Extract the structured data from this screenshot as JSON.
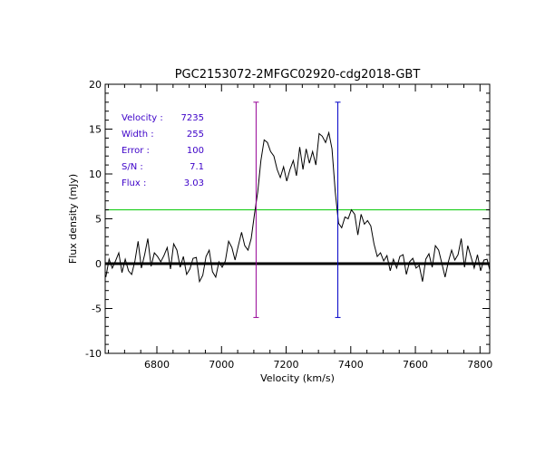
{
  "chart_data": {
    "type": "line",
    "title": "PGC2153072-2MFGC02920-cdg2018-GBT",
    "xlabel": "Velocity (km/s)",
    "ylabel": "Flux density (mJy)",
    "xlim": [
      6640,
      7830
    ],
    "ylim": [
      -10,
      20
    ],
    "x_ticks": [
      6800,
      7000,
      7200,
      7400,
      7600,
      7800
    ],
    "y_ticks": [
      -10,
      -5,
      0,
      5,
      10,
      15,
      20
    ],
    "x_tick_labels": [
      "6800",
      "7000",
      "7200",
      "7400",
      "7600",
      "7800"
    ],
    "y_tick_labels": [
      "-10",
      "-5",
      "0",
      "5",
      "10",
      "15",
      "20"
    ],
    "grid": false,
    "info_color": "#3c00c8",
    "info": [
      {
        "label": "Velocity :",
        "value": "7235"
      },
      {
        "label": "Width :",
        "value": "255"
      },
      {
        "label": "Error :",
        "value": "100"
      },
      {
        "label": "S/N :",
        "value": "7.1"
      },
      {
        "label": "Flux :",
        "value": "3.03"
      }
    ],
    "threshold_line": {
      "y": 6.0,
      "color": "#00c800"
    },
    "zero_line": {
      "y": 0,
      "color": "#000000"
    },
    "markers": [
      {
        "x": 7107,
        "ymin": -6,
        "ymax": 18,
        "color": "#960096"
      },
      {
        "x": 7360,
        "ymin": -6,
        "ymax": 18,
        "color": "#0000c8"
      }
    ],
    "series": [
      {
        "color": "#000000",
        "x": [
          6642,
          6652,
          6662,
          6672,
          6682,
          6692,
          6702,
          6712,
          6722,
          6732,
          6742,
          6752,
          6762,
          6772,
          6782,
          6792,
          6802,
          6812,
          6822,
          6832,
          6842,
          6852,
          6862,
          6872,
          6882,
          6892,
          6902,
          6912,
          6922,
          6932,
          6942,
          6952,
          6962,
          6972,
          6982,
          6992,
          7002,
          7012,
          7022,
          7032,
          7042,
          7052,
          7062,
          7072,
          7082,
          7092,
          7102,
          7112,
          7122,
          7132,
          7142,
          7152,
          7162,
          7172,
          7182,
          7192,
          7202,
          7212,
          7222,
          7232,
          7242,
          7252,
          7262,
          7272,
          7282,
          7292,
          7302,
          7312,
          7322,
          7332,
          7342,
          7352,
          7362,
          7372,
          7382,
          7392,
          7402,
          7412,
          7422,
          7432,
          7442,
          7452,
          7462,
          7472,
          7482,
          7492,
          7502,
          7512,
          7522,
          7532,
          7542,
          7552,
          7562,
          7572,
          7582,
          7592,
          7602,
          7612,
          7622,
          7632,
          7642,
          7652,
          7662,
          7672,
          7682,
          7692,
          7702,
          7712,
          7722,
          7732,
          7742,
          7752,
          7762,
          7772,
          7782,
          7792,
          7802,
          7812,
          7822,
          7830
        ],
        "y": [
          -1.5,
          0.5,
          -0.5,
          0.3,
          1.2,
          -1.0,
          0.5,
          -0.8,
          -1.2,
          0.3,
          2.5,
          -0.5,
          1.0,
          2.8,
          -0.3,
          1.2,
          0.8,
          0.2,
          0.9,
          1.8,
          -0.6,
          2.2,
          1.5,
          -0.4,
          0.8,
          -1.2,
          -0.6,
          0.6,
          0.7,
          -2.0,
          -1.3,
          0.8,
          1.5,
          -0.9,
          -1.5,
          0.2,
          -0.4,
          0.3,
          2.5,
          1.8,
          0.4,
          2.0,
          3.5,
          2.0,
          1.5,
          2.8,
          5.5,
          8.0,
          11.5,
          13.8,
          13.5,
          12.5,
          12.0,
          10.5,
          9.6,
          10.8,
          9.2,
          10.5,
          11.5,
          9.8,
          13.0,
          10.5,
          12.8,
          11.2,
          12.5,
          11.0,
          14.5,
          14.2,
          13.5,
          14.6,
          12.8,
          8.0,
          4.5,
          4.0,
          5.2,
          5.0,
          6.0,
          5.5,
          3.2,
          5.5,
          4.4,
          4.8,
          4.2,
          2.2,
          0.8,
          1.2,
          0.3,
          0.9,
          -0.8,
          0.5,
          -0.5,
          0.8,
          1.0,
          -1.2,
          0.2,
          0.6,
          -0.5,
          -0.2,
          -2.0,
          0.5,
          1.1,
          -0.4,
          2.0,
          1.5,
          0.0,
          -1.5,
          0.2,
          1.5,
          0.4,
          1.0,
          2.8,
          -0.4,
          2.0,
          0.8,
          -0.5,
          1.0,
          -0.8,
          0.4,
          0.5,
          -0.7
        ]
      }
    ]
  }
}
